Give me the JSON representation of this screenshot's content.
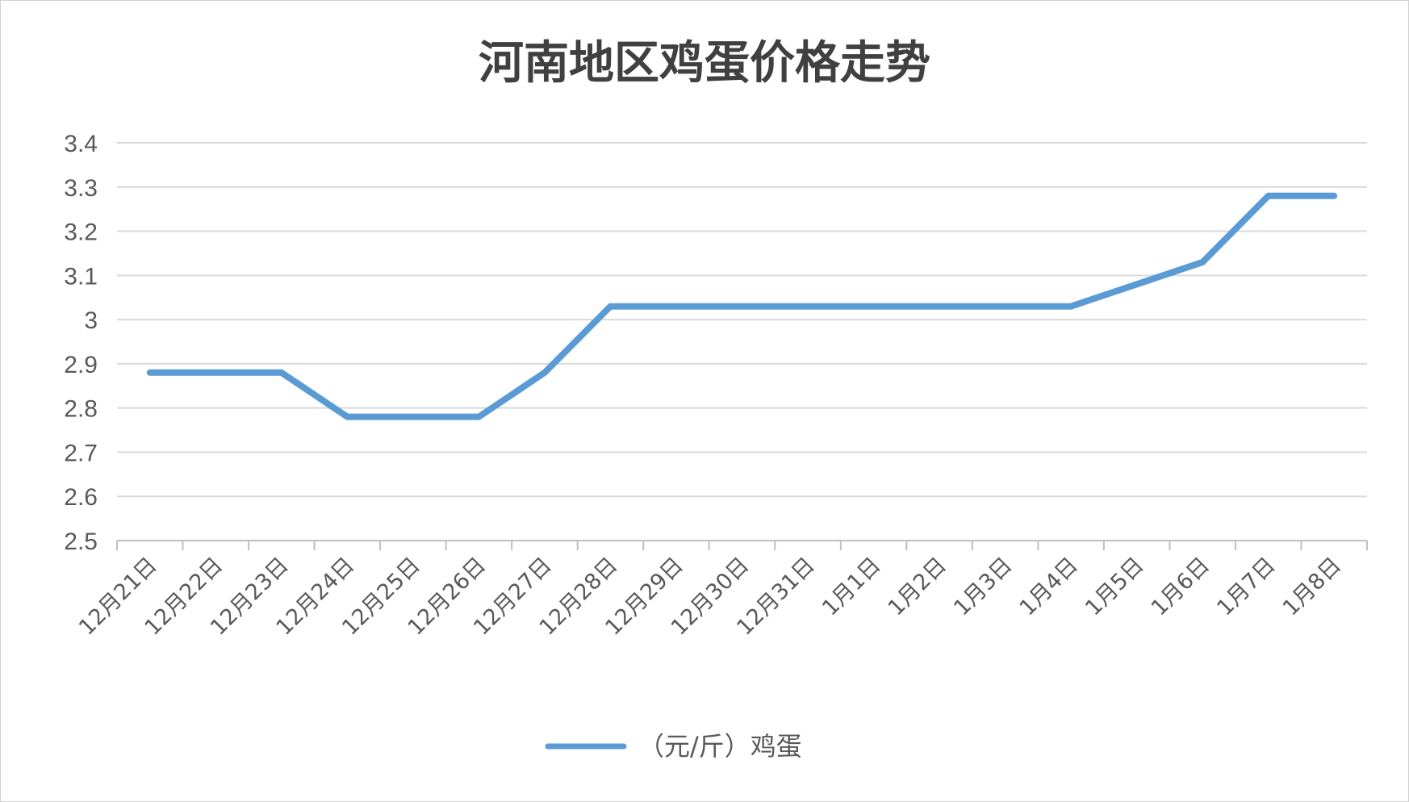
{
  "chart_data": {
    "type": "line",
    "title": "河南地区鸡蛋价格走势",
    "xlabel": "",
    "ylabel": "",
    "categories": [
      "12月21日",
      "12月22日",
      "12月23日",
      "12月24日",
      "12月25日",
      "12月26日",
      "12月27日",
      "12月28日",
      "12月29日",
      "12月30日",
      "12月31日",
      "1月1日",
      "1月2日",
      "1月3日",
      "1月4日",
      "1月5日",
      "1月6日",
      "1月7日",
      "1月8日"
    ],
    "series": [
      {
        "name": "（元/斤）鸡蛋",
        "color": "#5b9bd5",
        "values": [
          2.88,
          2.88,
          2.88,
          2.78,
          2.78,
          2.78,
          2.88,
          3.03,
          3.03,
          3.03,
          3.03,
          3.03,
          3.03,
          3.03,
          3.03,
          3.08,
          3.13,
          3.28,
          3.28
        ]
      }
    ],
    "ylim": [
      2.5,
      3.4
    ],
    "yticks": [
      "2.5",
      "2.6",
      "2.7",
      "2.8",
      "2.9",
      "3",
      "3.1",
      "3.2",
      "3.3",
      "3.4"
    ],
    "grid": true,
    "legend_position": "bottom"
  }
}
